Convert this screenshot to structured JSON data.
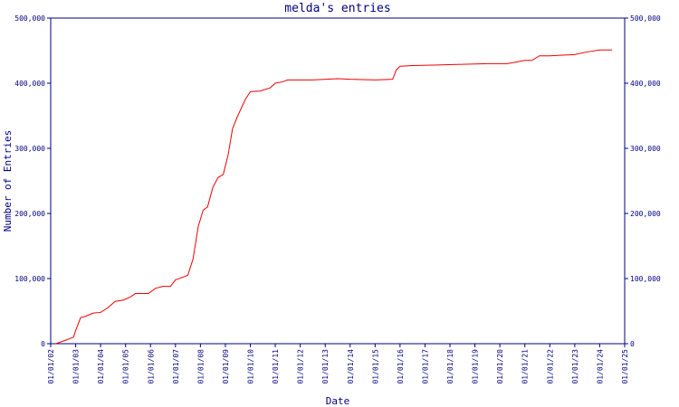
{
  "chart_data": {
    "type": "line",
    "title": "melda's entries",
    "xlabel": "Date",
    "ylabel": "Number of Entries",
    "x": [
      "2002-03-15",
      "2002-08-01",
      "2002-12-01",
      "2003-01-01",
      "2003-03-15",
      "2003-05-25",
      "2003-09-15",
      "2004-01-01",
      "2004-04-15",
      "2004-08-01",
      "2004-12-01",
      "2005-03-15",
      "2005-05-25",
      "2005-12-01",
      "2006-03-15",
      "2006-07-01",
      "2006-10-20",
      "2007-01-01",
      "2007-04-15",
      "2007-07-01",
      "2007-09-15",
      "2007-12-01",
      "2008-02-10",
      "2008-04-15",
      "2008-07-01",
      "2008-09-15",
      "2008-12-01",
      "2009-02-10",
      "2009-04-15",
      "2009-07-01",
      "2009-10-20",
      "2010-01-01",
      "2010-05-25",
      "2010-10-20",
      "2011-01-01",
      "2011-04-15",
      "2011-07-01",
      "2012-07-01",
      "2013-07-01",
      "2014-01-01",
      "2015-01-01",
      "2015-09-15",
      "2015-11-05",
      "2016-01-01",
      "2016-07-01",
      "2017-07-01",
      "2018-07-01",
      "2019-07-01",
      "2020-04-15",
      "2020-08-01",
      "2021-01-01",
      "2021-04-15",
      "2021-08-01",
      "2022-01-01",
      "2022-07-01",
      "2023-01-01",
      "2023-07-01",
      "2024-01-01",
      "2024-07-01"
    ],
    "series": [
      {
        "name": "entries",
        "color": "#ee0000",
        "values": [
          0,
          5000,
          10000,
          20000,
          40000,
          42000,
          47000,
          48000,
          55000,
          65000,
          67000,
          72000,
          77000,
          77000,
          85000,
          88000,
          88000,
          98000,
          102000,
          105000,
          130000,
          180000,
          205000,
          210000,
          240000,
          255000,
          260000,
          290000,
          330000,
          350000,
          375000,
          387000,
          388000,
          393000,
          400000,
          402000,
          405000,
          405000,
          407000,
          406000,
          405000,
          406000,
          420000,
          426000,
          427000,
          428000,
          429000,
          430000,
          430000,
          432000,
          435000,
          435000,
          442000,
          442000,
          443000,
          444000,
          448000,
          451000,
          451000
        ]
      }
    ],
    "xlim": [
      "2002-01-01",
      "2025-01-01"
    ],
    "xticks": [
      {
        "value": "2002-01-01",
        "label": "01/01/02"
      },
      {
        "value": "2003-01-01",
        "label": "01/01/03"
      },
      {
        "value": "2004-01-01",
        "label": "01/01/04"
      },
      {
        "value": "2005-01-01",
        "label": "01/01/05"
      },
      {
        "value": "2006-01-01",
        "label": "01/01/06"
      },
      {
        "value": "2007-01-01",
        "label": "01/01/07"
      },
      {
        "value": "2008-01-01",
        "label": "01/01/08"
      },
      {
        "value": "2009-01-01",
        "label": "01/01/09"
      },
      {
        "value": "2010-01-01",
        "label": "01/01/10"
      },
      {
        "value": "2011-01-01",
        "label": "01/01/11"
      },
      {
        "value": "2012-01-01",
        "label": "01/01/12"
      },
      {
        "value": "2013-01-01",
        "label": "01/01/13"
      },
      {
        "value": "2014-01-01",
        "label": "01/01/14"
      },
      {
        "value": "2015-01-01",
        "label": "01/01/15"
      },
      {
        "value": "2016-01-01",
        "label": "01/01/16"
      },
      {
        "value": "2017-01-01",
        "label": "01/01/17"
      },
      {
        "value": "2018-01-01",
        "label": "01/01/18"
      },
      {
        "value": "2019-01-01",
        "label": "01/01/19"
      },
      {
        "value": "2020-01-01",
        "label": "01/01/20"
      },
      {
        "value": "2021-01-01",
        "label": "01/01/21"
      },
      {
        "value": "2022-01-01",
        "label": "01/01/22"
      },
      {
        "value": "2023-01-01",
        "label": "01/01/23"
      },
      {
        "value": "2024-01-01",
        "label": "01/01/24"
      },
      {
        "value": "2025-01-01",
        "label": "01/01/25"
      }
    ],
    "ylim": [
      0,
      500000
    ],
    "yticks": [
      0,
      {
        "value": 100000,
        "label": "100,000"
      },
      {
        "value": 200000,
        "label": "200,000"
      },
      {
        "value": 300000,
        "label": "300,000"
      },
      {
        "value": 400000,
        "label": "400,000"
      },
      {
        "value": 500000,
        "label": "500,000"
      }
    ],
    "y2lim": [
      0,
      500000
    ],
    "y2ticks": [
      0,
      {
        "value": 100000,
        "label": "100,000"
      },
      {
        "value": 200000,
        "label": "200,000"
      },
      {
        "value": 300000,
        "label": "300,000"
      },
      {
        "value": 400000,
        "label": "400,000"
      },
      {
        "value": 500000,
        "label": "500,000"
      }
    ],
    "axis_color": "#000080"
  }
}
